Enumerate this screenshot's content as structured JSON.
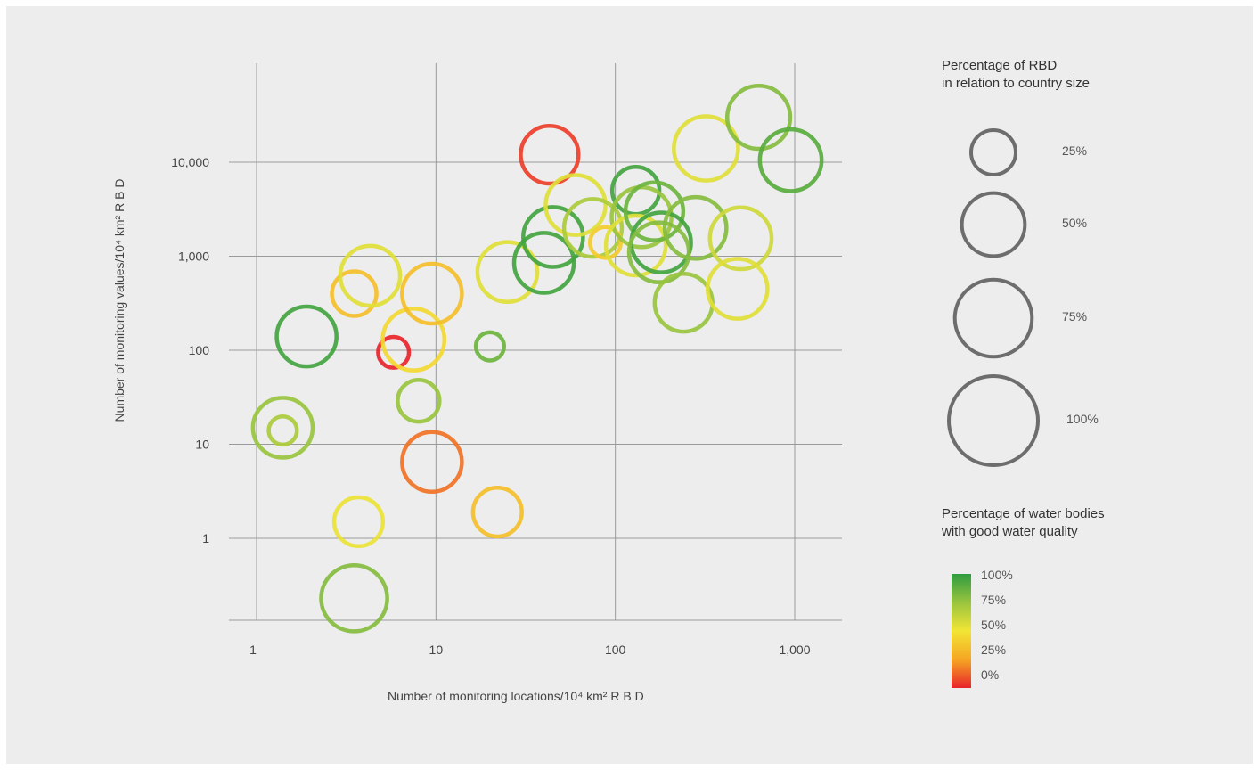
{
  "chart_data": {
    "type": "scatter",
    "subtype": "bubble",
    "xlabel": "Number of monitoring locations/10⁴ km² R B D",
    "ylabel": "Number of monitoring values/10⁴ km² R B D",
    "xscale": "log",
    "yscale": "log",
    "xlim": [
      0.8,
      1300
    ],
    "ylim": [
      0.12,
      90000
    ],
    "xticks": [
      1,
      10,
      100,
      1000
    ],
    "xtick_labels": [
      "1",
      "10",
      "100",
      "1,000"
    ],
    "yticks": [
      1,
      10,
      100,
      1000,
      10000
    ],
    "ytick_labels": [
      "1",
      "10",
      "100",
      "1,000",
      "10,000"
    ],
    "grid": true,
    "size_legend": {
      "title": "Percentage of RBD\nin relation to country size",
      "entries": [
        {
          "label": "25%",
          "percent": 25
        },
        {
          "label": "50%",
          "percent": 50
        },
        {
          "label": "75%",
          "percent": 75
        },
        {
          "label": "100%",
          "percent": 100
        }
      ]
    },
    "color_legend": {
      "title": "Percentage of water bodies\nwith good water quality",
      "labels": [
        "100%",
        "75%",
        "50%",
        "25%",
        "0%"
      ],
      "colors": [
        "#2e9c3f",
        "#99c43f",
        "#f2e535",
        "#f5a623",
        "#e8242b"
      ]
    },
    "points": [
      {
        "x": 1.4,
        "y": 14,
        "size_pct": 10,
        "quality_pct": 70
      },
      {
        "x": 1.4,
        "y": 15,
        "size_pct": 45,
        "quality_pct": 75
      },
      {
        "x": 1.9,
        "y": 140,
        "size_pct": 45,
        "quality_pct": 95
      },
      {
        "x": 3.5,
        "y": 400,
        "size_pct": 25,
        "quality_pct": 35
      },
      {
        "x": 4.3,
        "y": 620,
        "size_pct": 45,
        "quality_pct": 55
      },
      {
        "x": 5.8,
        "y": 95,
        "size_pct": 12,
        "quality_pct": 0
      },
      {
        "x": 7.5,
        "y": 130,
        "size_pct": 48,
        "quality_pct": 45
      },
      {
        "x": 9.5,
        "y": 400,
        "size_pct": 45,
        "quality_pct": 35
      },
      {
        "x": 8,
        "y": 29,
        "size_pct": 22,
        "quality_pct": 75
      },
      {
        "x": 9.5,
        "y": 6.5,
        "size_pct": 45,
        "quality_pct": 15
      },
      {
        "x": 3.7,
        "y": 1.5,
        "size_pct": 30,
        "quality_pct": 52
      },
      {
        "x": 3.5,
        "y": 0.23,
        "size_pct": 55,
        "quality_pct": 80
      },
      {
        "x": 20,
        "y": 110,
        "size_pct": 10,
        "quality_pct": 85
      },
      {
        "x": 22,
        "y": 1.9,
        "size_pct": 30,
        "quality_pct": 35
      },
      {
        "x": 25,
        "y": 680,
        "size_pct": 45,
        "quality_pct": 55
      },
      {
        "x": 40,
        "y": 850,
        "size_pct": 45,
        "quality_pct": 95
      },
      {
        "x": 45,
        "y": 1600,
        "size_pct": 45,
        "quality_pct": 95
      },
      {
        "x": 43,
        "y": 12000,
        "size_pct": 42,
        "quality_pct": 5
      },
      {
        "x": 60,
        "y": 3500,
        "size_pct": 45,
        "quality_pct": 55
      },
      {
        "x": 75,
        "y": 2000,
        "size_pct": 42,
        "quality_pct": 70
      },
      {
        "x": 88,
        "y": 1400,
        "size_pct": 12,
        "quality_pct": 40
      },
      {
        "x": 130,
        "y": 5000,
        "size_pct": 28,
        "quality_pct": 95
      },
      {
        "x": 140,
        "y": 2600,
        "size_pct": 45,
        "quality_pct": 75
      },
      {
        "x": 130,
        "y": 1300,
        "size_pct": 45,
        "quality_pct": 55
      },
      {
        "x": 165,
        "y": 3000,
        "size_pct": 42,
        "quality_pct": 85
      },
      {
        "x": 180,
        "y": 1400,
        "size_pct": 45,
        "quality_pct": 95
      },
      {
        "x": 175,
        "y": 1100,
        "size_pct": 45,
        "quality_pct": 80
      },
      {
        "x": 240,
        "y": 320,
        "size_pct": 42,
        "quality_pct": 75
      },
      {
        "x": 280,
        "y": 2000,
        "size_pct": 48,
        "quality_pct": 80
      },
      {
        "x": 320,
        "y": 14000,
        "size_pct": 52,
        "quality_pct": 55
      },
      {
        "x": 500,
        "y": 1550,
        "size_pct": 48,
        "quality_pct": 60
      },
      {
        "x": 480,
        "y": 450,
        "size_pct": 45,
        "quality_pct": 55
      },
      {
        "x": 630,
        "y": 30000,
        "size_pct": 50,
        "quality_pct": 80
      },
      {
        "x": 950,
        "y": 10500,
        "size_pct": 48,
        "quality_pct": 90
      }
    ]
  }
}
